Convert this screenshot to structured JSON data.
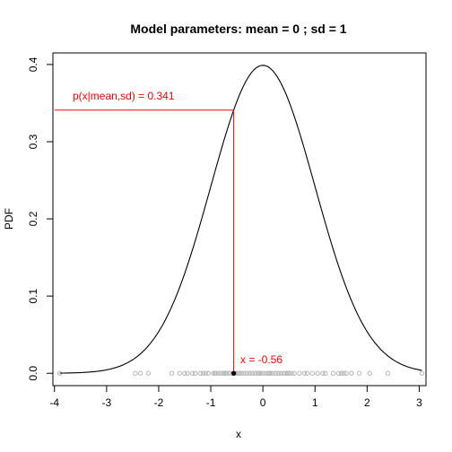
{
  "chart_data": {
    "type": "line",
    "title": "Model parameters: mean = 0 ; sd = 1",
    "xlabel": "x",
    "ylabel": "PDF",
    "xlim": [
      -4.03,
      3.13
    ],
    "ylim": [
      -0.016,
      0.415
    ],
    "x_ticks": [
      -4,
      -3,
      -2,
      -1,
      0,
      1,
      2,
      3
    ],
    "y_ticks": [
      0.0,
      0.1,
      0.2,
      0.3,
      0.4
    ],
    "x_tick_labels": [
      "-4",
      "-3",
      "-2",
      "-1",
      "0",
      "1",
      "2",
      "3"
    ],
    "y_tick_labels": [
      "0.0",
      "0.1",
      "0.2",
      "0.3",
      "0.4"
    ],
    "grid": false,
    "legend": "none",
    "series": [
      {
        "kind": "normal-density-curve",
        "mean": 0,
        "sd": 1,
        "x_range": [
          -3.9,
          3.05
        ],
        "color": "#000000"
      },
      {
        "kind": "sample-points",
        "color": "#b3b3b3",
        "y": 0,
        "x": [
          -3.9,
          -2.45,
          -2.35,
          -2.2,
          -1.75,
          -1.6,
          -1.5,
          -1.45,
          -1.35,
          -1.3,
          -1.2,
          -1.15,
          -1.1,
          -1.05,
          -0.95,
          -0.92,
          -0.9,
          -0.85,
          -0.8,
          -0.75,
          -0.72,
          -0.7,
          -0.65,
          -0.6,
          -0.55,
          -0.5,
          -0.47,
          -0.45,
          -0.4,
          -0.35,
          -0.3,
          -0.25,
          -0.2,
          -0.15,
          -0.1,
          -0.08,
          -0.05,
          0.0,
          0.05,
          0.1,
          0.12,
          0.15,
          0.2,
          0.25,
          0.3,
          0.35,
          0.4,
          0.45,
          0.48,
          0.5,
          0.55,
          0.6,
          0.7,
          0.8,
          0.85,
          0.95,
          1.05,
          1.15,
          1.2,
          1.35,
          1.45,
          1.5,
          1.55,
          1.6,
          1.7,
          1.85,
          2.05,
          2.4,
          3.05
        ]
      }
    ],
    "highlight": {
      "x": -0.56,
      "pdf": 0.341,
      "color": "#ff0000",
      "point_label": "x = -0.56",
      "pdf_label": "p(x|mean,sd) = 0.341"
    }
  }
}
